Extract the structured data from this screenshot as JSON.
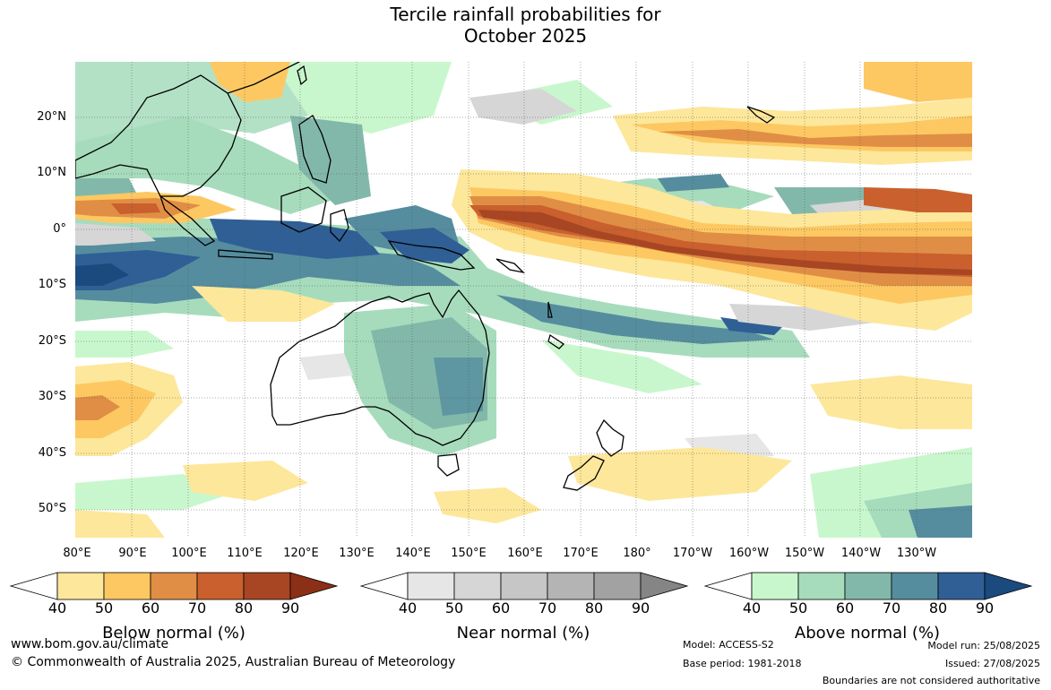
{
  "title_line1": "Tercile rainfall probabilities for",
  "title_line2": "October 2025",
  "lat_labels": [
    "20°N",
    "10°N",
    "0°",
    "10°S",
    "20°S",
    "30°S",
    "40°S",
    "50°S"
  ],
  "lon_labels": [
    "80°E",
    "90°E",
    "100°E",
    "110°E",
    "120°E",
    "130°E",
    "140°E",
    "150°E",
    "160°E",
    "170°E",
    "180°",
    "170°W",
    "160°W",
    "150°W",
    "140°W",
    "130°W"
  ],
  "colorbars": [
    {
      "title": "Below normal (%)",
      "ticks": [
        "40",
        "50",
        "60",
        "70",
        "80",
        "90"
      ],
      "colors": [
        "#fde79a",
        "#fdc862",
        "#e08e45",
        "#c9602d",
        "#a84623",
        "#8c2f17"
      ]
    },
    {
      "title": "Near normal (%)",
      "ticks": [
        "40",
        "50",
        "60",
        "70",
        "80",
        "90"
      ],
      "colors": [
        "#e6e6e6",
        "#d6d6d6",
        "#c6c6c6",
        "#b4b4b4",
        "#a2a2a2",
        "#858585"
      ]
    },
    {
      "title": "Above normal (%)",
      "ticks": [
        "40",
        "50",
        "60",
        "70",
        "80",
        "90"
      ],
      "colors": [
        "#c9f7cd",
        "#a6dcbc",
        "#82b8aa",
        "#558d9f",
        "#2f5f95",
        "#1a4a7e"
      ]
    }
  ],
  "footer": {
    "url": "www.bom.gov.au/climate",
    "copyright": "© Commonwealth of Australia 2025, Australian Bureau of Meteorology",
    "model": "Model: ACCESS-S2",
    "base_period": "Base period: 1981-2018",
    "model_run": "Model run: 25/08/2025",
    "issued": "Issued: 27/08/2025",
    "disclaimer": "Boundaries are not considered authoritative"
  }
}
